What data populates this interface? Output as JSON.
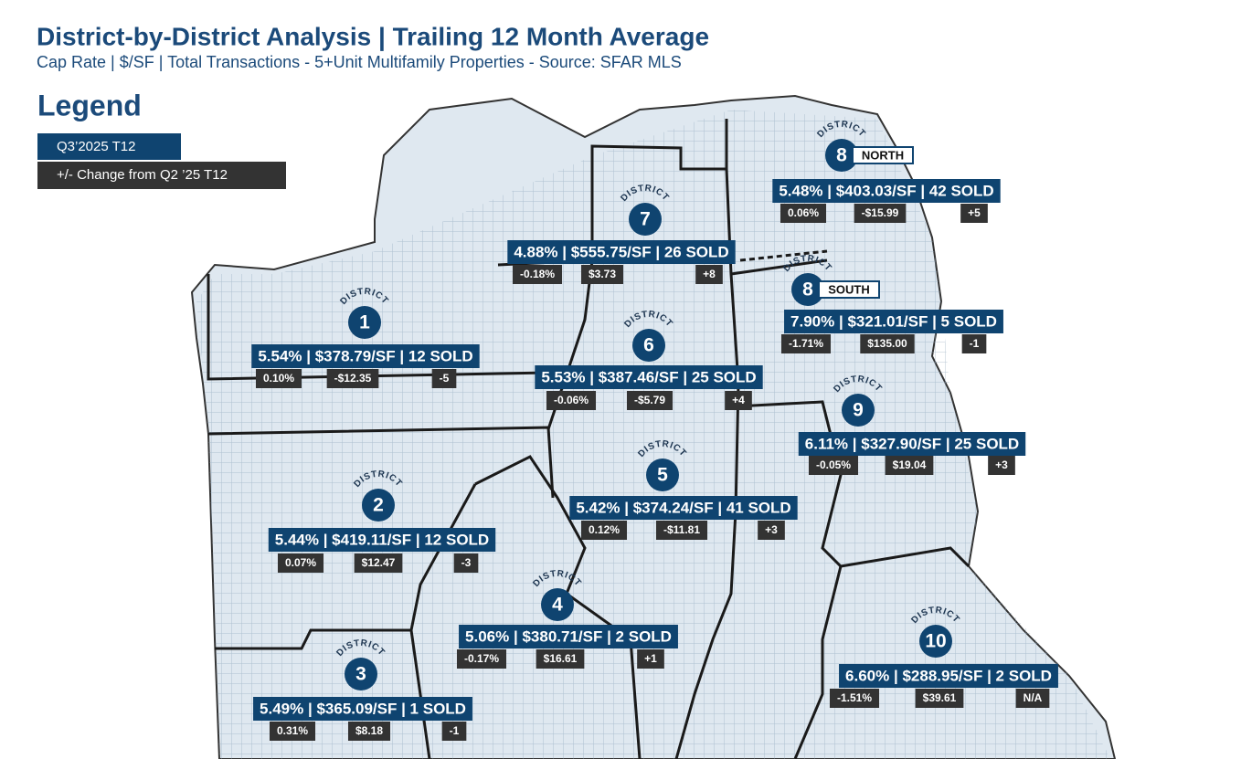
{
  "header": {
    "title": "District-by-District Analysis | Trailing 12 Month Average",
    "subtitle": "Cap Rate | $/SF | Total Transactions - 5+Unit Multifamily Properties - Source: SFAR MLS"
  },
  "legend": {
    "title": "Legend",
    "current": "Q3’2025 T12",
    "change": "+/- Change from Q2 ’25 T12"
  },
  "district_label": "DISTRICT",
  "districts": [
    {
      "number": "8",
      "tag": "NORTH",
      "headline": "5.48% | $403.03/SF | 42 SOLD",
      "changes": [
        "0.06%",
        "-$15.99",
        "+5"
      ]
    },
    {
      "number": "7",
      "headline": "4.88% | $555.75/SF | 26 SOLD",
      "changes": [
        "-0.18%",
        "$3.73",
        "+8"
      ]
    },
    {
      "number": "8",
      "tag": "SOUTH",
      "headline": "7.90% | $321.01/SF | 5 SOLD",
      "changes": [
        "-1.71%",
        "$135.00",
        "-1"
      ]
    },
    {
      "number": "1",
      "headline": "5.54% | $378.79/SF | 12 SOLD",
      "changes": [
        "0.10%",
        "-$12.35",
        "-5"
      ]
    },
    {
      "number": "6",
      "headline": "5.53% | $387.46/SF | 25 SOLD",
      "changes": [
        "-0.06%",
        "-$5.79",
        "+4"
      ]
    },
    {
      "number": "9",
      "headline": "6.11% | $327.90/SF | 25 SOLD",
      "changes": [
        "-0.05%",
        "$19.04",
        "+3"
      ]
    },
    {
      "number": "5",
      "headline": "5.42% | $374.24/SF | 41 SOLD",
      "changes": [
        "0.12%",
        "-$11.81",
        "+3"
      ]
    },
    {
      "number": "2",
      "headline": "5.44% | $419.11/SF | 12 SOLD",
      "changes": [
        "0.07%",
        "$12.47",
        "-3"
      ]
    },
    {
      "number": "4",
      "headline": "5.06% | $380.71/SF | 2 SOLD",
      "changes": [
        "-0.17%",
        "$16.61",
        "+1"
      ]
    },
    {
      "number": "10",
      "headline": "6.60% | $288.95/SF | 2 SOLD",
      "changes": [
        "-1.51%",
        "$39.61",
        "N/A"
      ]
    },
    {
      "number": "3",
      "headline": "5.49% | $365.09/SF | 1 SOLD",
      "changes": [
        "0.31%",
        "$8.18",
        "-1"
      ]
    }
  ]
}
